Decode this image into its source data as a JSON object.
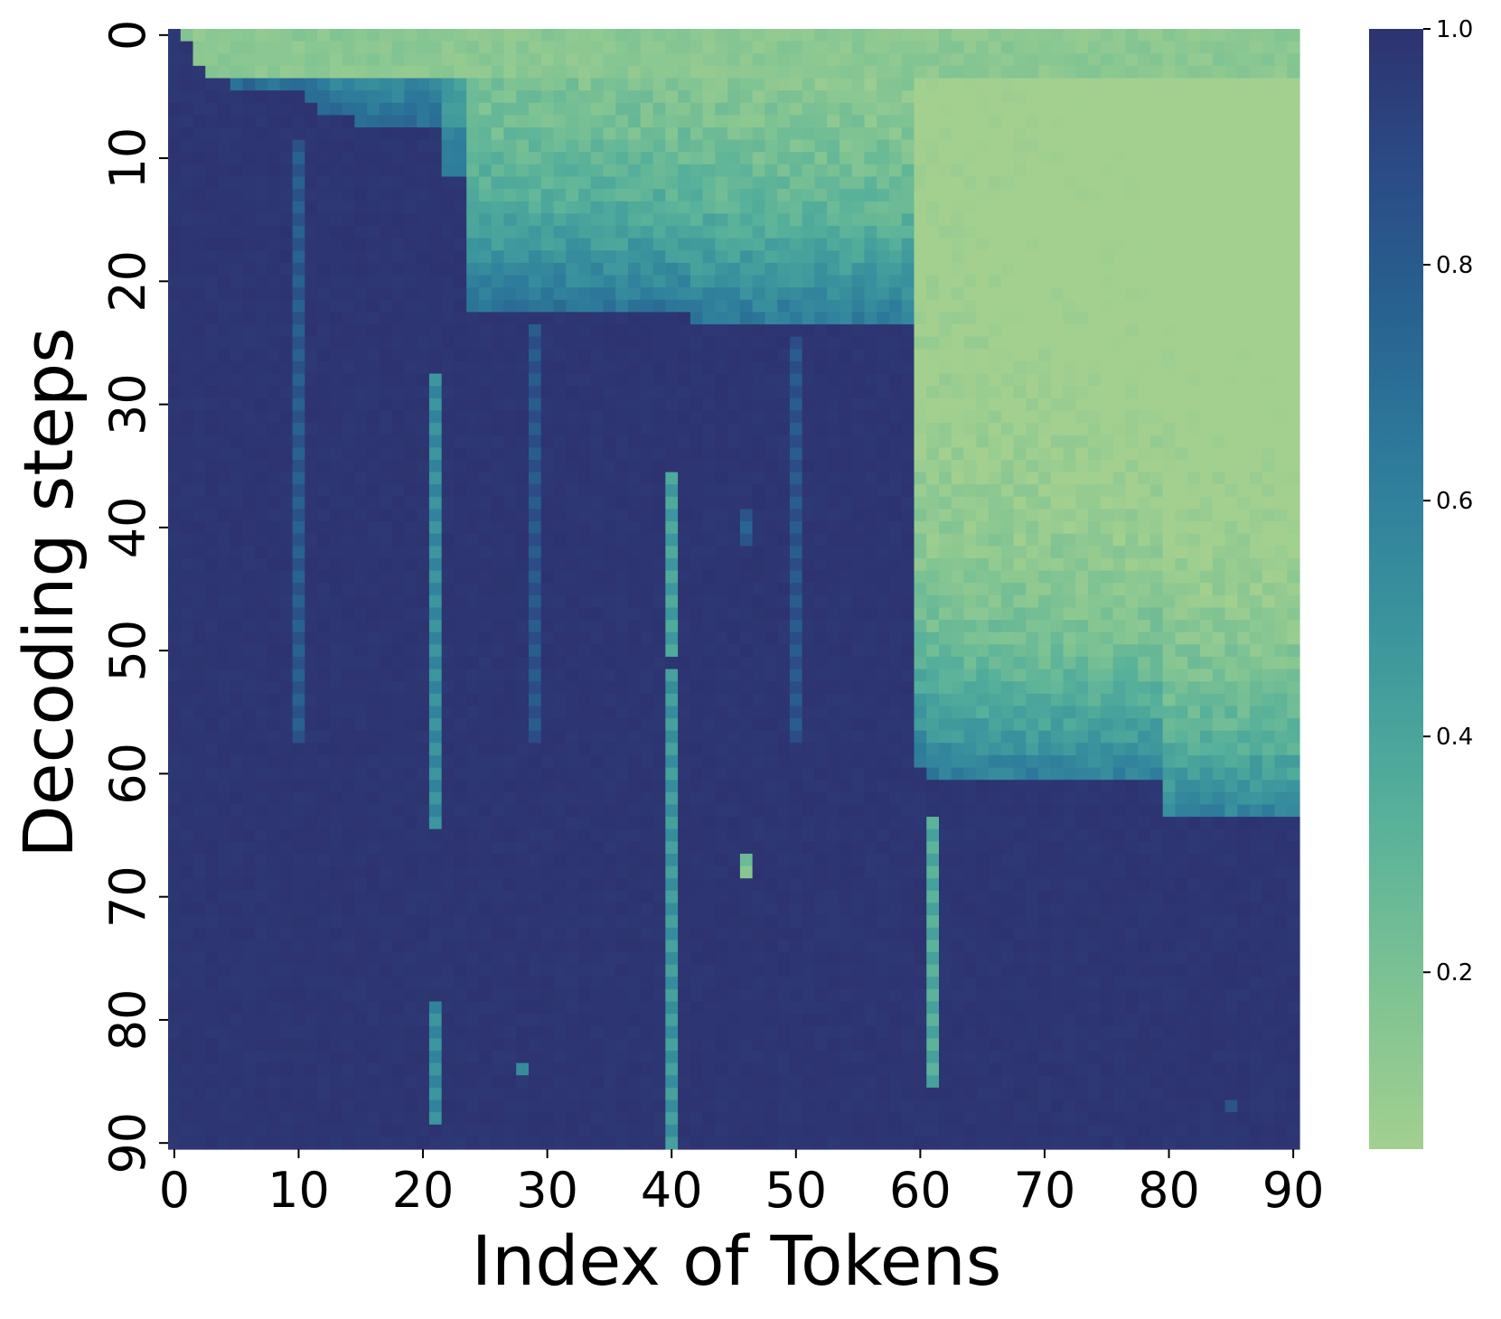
{
  "chart_data": {
    "type": "heatmap",
    "xlabel": "Index of Tokens",
    "ylabel": "Decoding steps",
    "x_ticks": [
      "0",
      "10",
      "20",
      "30",
      "40",
      "50",
      "60",
      "70",
      "80",
      "90"
    ],
    "y_ticks": [
      "0",
      "10",
      "20",
      "30",
      "40",
      "50",
      "60",
      "70",
      "80",
      "90"
    ],
    "n_tokens": 91,
    "n_steps": 91,
    "x_range": [
      0,
      90
    ],
    "y_range": [
      0,
      90
    ],
    "value_range": [
      0.05,
      1.0
    ],
    "colorbar_ticks": [
      "1.0",
      "0.8",
      "0.6",
      "0.4",
      "0.2"
    ],
    "colormap": [
      "#a3d08f",
      "#7fc393",
      "#56b09a",
      "#3b959d",
      "#2d7a9b",
      "#28608f",
      "#2b4a85",
      "#2d3370"
    ],
    "decode_boundary": [
      [
        0,
        0
      ],
      [
        1,
        1
      ],
      [
        2,
        3
      ],
      [
        3,
        4
      ],
      [
        4,
        4
      ],
      [
        5,
        5
      ],
      [
        6,
        5
      ],
      [
        7,
        5
      ],
      [
        8,
        5
      ],
      [
        9,
        5
      ],
      [
        10,
        5
      ],
      [
        11,
        5
      ],
      [
        12,
        5
      ],
      [
        13,
        5
      ],
      [
        14,
        5
      ],
      [
        15,
        5
      ],
      [
        16,
        5
      ],
      [
        17,
        5
      ],
      [
        18,
        5
      ],
      [
        19,
        5
      ],
      [
        20,
        5
      ],
      [
        21,
        5
      ],
      [
        22,
        10
      ],
      [
        23,
        12
      ],
      [
        24,
        23
      ],
      [
        25,
        23
      ],
      [
        26,
        23
      ],
      [
        27,
        23
      ],
      [
        28,
        23
      ],
      [
        29,
        23
      ],
      [
        30,
        23
      ],
      [
        31,
        23
      ],
      [
        32,
        23
      ],
      [
        33,
        23
      ],
      [
        34,
        23
      ],
      [
        35,
        23
      ],
      [
        36,
        23
      ],
      [
        37,
        23
      ],
      [
        38,
        23
      ],
      [
        39,
        23
      ],
      [
        40,
        23
      ],
      [
        41,
        23
      ],
      [
        42,
        24
      ],
      [
        43,
        24
      ],
      [
        44,
        24
      ],
      [
        45,
        24
      ],
      [
        46,
        24
      ],
      [
        47,
        24
      ],
      [
        48,
        24
      ],
      [
        49,
        24
      ],
      [
        50,
        24
      ],
      [
        51,
        24
      ],
      [
        52,
        24
      ],
      [
        53,
        24
      ],
      [
        54,
        24
      ],
      [
        55,
        24
      ],
      [
        56,
        24
      ],
      [
        57,
        24
      ],
      [
        58,
        24
      ],
      [
        59,
        24
      ],
      [
        60,
        60
      ],
      [
        61,
        60
      ],
      [
        62,
        60
      ],
      [
        63,
        60
      ],
      [
        64,
        60
      ],
      [
        65,
        60
      ],
      [
        66,
        60
      ],
      [
        67,
        60
      ],
      [
        68,
        60
      ],
      [
        69,
        60
      ],
      [
        70,
        60
      ],
      [
        71,
        60
      ],
      [
        72,
        60
      ],
      [
        73,
        60
      ],
      [
        74,
        60
      ],
      [
        75,
        60
      ],
      [
        76,
        60
      ],
      [
        77,
        60
      ],
      [
        78,
        60
      ],
      [
        79,
        60
      ],
      [
        80,
        63
      ],
      [
        81,
        63
      ],
      [
        82,
        63
      ],
      [
        83,
        63
      ],
      [
        84,
        63
      ],
      [
        85,
        63
      ],
      [
        86,
        63
      ],
      [
        87,
        63
      ],
      [
        88,
        63
      ],
      [
        89,
        63
      ],
      [
        90,
        63
      ]
    ],
    "dark_block_start": [
      [
        0,
        0
      ],
      [
        1,
        1
      ],
      [
        2,
        3
      ],
      [
        3,
        4
      ],
      [
        4,
        4
      ],
      [
        5,
        5
      ],
      [
        6,
        5
      ],
      [
        7,
        5
      ],
      [
        8,
        5
      ],
      [
        9,
        5
      ],
      [
        10,
        5
      ],
      [
        11,
        6
      ],
      [
        12,
        7
      ],
      [
        13,
        7
      ],
      [
        14,
        7
      ],
      [
        15,
        8
      ],
      [
        16,
        8
      ],
      [
        17,
        8
      ],
      [
        18,
        8
      ],
      [
        19,
        8
      ],
      [
        20,
        8
      ],
      [
        21,
        8
      ],
      [
        22,
        12
      ],
      [
        23,
        12
      ],
      [
        24,
        23
      ],
      [
        25,
        23
      ],
      [
        26,
        23
      ],
      [
        27,
        23
      ],
      [
        28,
        23
      ],
      [
        29,
        23
      ],
      [
        30,
        23
      ],
      [
        31,
        23
      ],
      [
        32,
        23
      ],
      [
        33,
        23
      ],
      [
        34,
        23
      ],
      [
        35,
        23
      ],
      [
        36,
        23
      ],
      [
        37,
        23
      ],
      [
        38,
        23
      ],
      [
        39,
        23
      ],
      [
        40,
        23
      ],
      [
        41,
        23
      ],
      [
        42,
        24
      ],
      [
        43,
        24
      ],
      [
        44,
        24
      ],
      [
        45,
        24
      ],
      [
        46,
        24
      ],
      [
        47,
        24
      ],
      [
        48,
        24
      ],
      [
        49,
        24
      ],
      [
        50,
        24
      ],
      [
        51,
        24
      ],
      [
        52,
        24
      ],
      [
        53,
        24
      ],
      [
        54,
        24
      ],
      [
        55,
        24
      ],
      [
        56,
        24
      ],
      [
        57,
        24
      ],
      [
        58,
        24
      ],
      [
        59,
        24
      ],
      [
        60,
        60
      ],
      [
        61,
        61
      ],
      [
        62,
        61
      ],
      [
        63,
        61
      ],
      [
        64,
        61
      ],
      [
        65,
        61
      ],
      [
        66,
        61
      ],
      [
        67,
        61
      ],
      [
        68,
        61
      ],
      [
        69,
        61
      ],
      [
        70,
        61
      ],
      [
        71,
        61
      ],
      [
        72,
        61
      ],
      [
        73,
        61
      ],
      [
        74,
        61
      ],
      [
        75,
        61
      ],
      [
        76,
        61
      ],
      [
        77,
        61
      ],
      [
        78,
        61
      ],
      [
        79,
        61
      ],
      [
        80,
        64
      ],
      [
        81,
        64
      ],
      [
        82,
        64
      ],
      [
        83,
        64
      ],
      [
        84,
        64
      ],
      [
        85,
        64
      ],
      [
        86,
        64
      ],
      [
        87,
        64
      ],
      [
        88,
        64
      ],
      [
        89,
        64
      ],
      [
        90,
        64
      ]
    ],
    "light_streaks": [
      {
        "token": 10,
        "from_step": 9,
        "to_step": 57,
        "value": 0.72
      },
      {
        "token": 21,
        "from_step": 28,
        "to_step": 64,
        "value": 0.45
      },
      {
        "token": 21,
        "from_step": 79,
        "to_step": 88,
        "value": 0.45
      },
      {
        "token": 29,
        "from_step": 24,
        "to_step": 57,
        "value": 0.75
      },
      {
        "token": 40,
        "from_step": 36,
        "to_step": 50,
        "value": 0.35
      },
      {
        "token": 40,
        "from_step": 52,
        "to_step": 90,
        "value": 0.4
      },
      {
        "token": 46,
        "from_step": 39,
        "to_step": 41,
        "value": 0.7
      },
      {
        "token": 46,
        "from_step": 67,
        "to_step": 68,
        "value": 0.15
      },
      {
        "token": 50,
        "from_step": 25,
        "to_step": 57,
        "value": 0.75
      },
      {
        "token": 61,
        "from_step": 64,
        "to_step": 85,
        "value": 0.3
      },
      {
        "token": 28,
        "from_step": 84,
        "to_step": 84,
        "value": 0.5
      },
      {
        "token": 85,
        "from_step": 87,
        "to_step": 87,
        "value": 0.7
      }
    ]
  }
}
